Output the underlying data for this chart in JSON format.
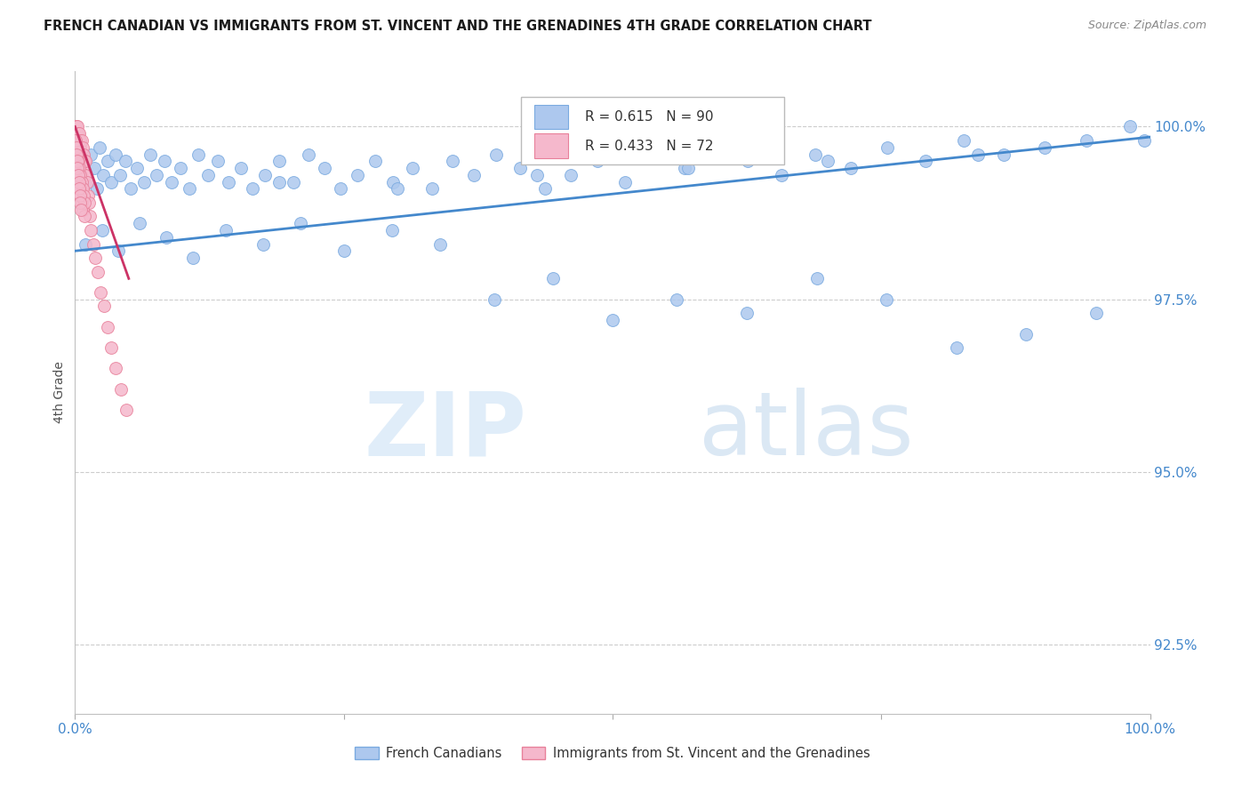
{
  "title": "FRENCH CANADIAN VS IMMIGRANTS FROM ST. VINCENT AND THE GRENADINES 4TH GRADE CORRELATION CHART",
  "source": "Source: ZipAtlas.com",
  "ylabel": "4th Grade",
  "yticks": [
    92.5,
    95.0,
    97.5,
    100.0
  ],
  "ytick_labels": [
    "92.5%",
    "95.0%",
    "97.5%",
    "100.0%"
  ],
  "xmin": 0.0,
  "xmax": 100.0,
  "ymin": 91.5,
  "ymax": 100.8,
  "blue_R": 0.615,
  "blue_N": 90,
  "pink_R": 0.433,
  "pink_N": 72,
  "blue_color": "#adc8ee",
  "blue_edge": "#7aaae0",
  "pink_color": "#f5b8cc",
  "pink_edge": "#e8809a",
  "blue_line_color": "#4488cc",
  "pink_line_color": "#cc3366",
  "legend_label_blue": "French Canadians",
  "legend_label_pink": "Immigrants from St. Vincent and the Grenadines",
  "watermark_zip": "ZIP",
  "watermark_atlas": "atlas",
  "blue_x": [
    0.5,
    0.8,
    1.2,
    1.5,
    1.8,
    2.0,
    2.3,
    2.6,
    3.0,
    3.4,
    3.8,
    4.2,
    4.7,
    5.2,
    5.8,
    6.4,
    7.0,
    7.6,
    8.3,
    9.0,
    9.8,
    10.6,
    11.5,
    12.4,
    13.3,
    14.3,
    15.4,
    16.5,
    17.7,
    19.0,
    20.3,
    21.7,
    23.2,
    24.7,
    26.3,
    27.9,
    29.6,
    31.4,
    33.2,
    35.1,
    37.1,
    39.2,
    41.4,
    43.7,
    46.1,
    48.6,
    51.2,
    53.9,
    56.7,
    59.6,
    62.6,
    65.7,
    68.9,
    72.2,
    75.6,
    79.1,
    82.7,
    86.4,
    90.2,
    94.1,
    98.1,
    1.0,
    2.5,
    4.0,
    6.0,
    8.5,
    11.0,
    14.0,
    17.5,
    21.0,
    25.0,
    29.5,
    34.0,
    39.0,
    44.5,
    50.0,
    56.0,
    62.5,
    69.0,
    75.5,
    82.0,
    88.5,
    95.0,
    19.0,
    30.0,
    43.0,
    57.0,
    70.0,
    84.0,
    99.5
  ],
  "blue_y": [
    99.3,
    99.5,
    99.2,
    99.6,
    99.4,
    99.1,
    99.7,
    99.3,
    99.5,
    99.2,
    99.6,
    99.3,
    99.5,
    99.1,
    99.4,
    99.2,
    99.6,
    99.3,
    99.5,
    99.2,
    99.4,
    99.1,
    99.6,
    99.3,
    99.5,
    99.2,
    99.4,
    99.1,
    99.3,
    99.5,
    99.2,
    99.6,
    99.4,
    99.1,
    99.3,
    99.5,
    99.2,
    99.4,
    99.1,
    99.5,
    99.3,
    99.6,
    99.4,
    99.1,
    99.3,
    99.5,
    99.2,
    99.6,
    99.4,
    99.7,
    99.5,
    99.3,
    99.6,
    99.4,
    99.7,
    99.5,
    99.8,
    99.6,
    99.7,
    99.8,
    100.0,
    98.3,
    98.5,
    98.2,
    98.6,
    98.4,
    98.1,
    98.5,
    98.3,
    98.6,
    98.2,
    98.5,
    98.3,
    97.5,
    97.8,
    97.2,
    97.5,
    97.3,
    97.8,
    97.5,
    96.8,
    97.0,
    97.3,
    99.2,
    99.1,
    99.3,
    99.4,
    99.5,
    99.6,
    99.8
  ],
  "pink_x": [
    0.05,
    0.08,
    0.1,
    0.12,
    0.15,
    0.18,
    0.2,
    0.22,
    0.25,
    0.28,
    0.3,
    0.32,
    0.35,
    0.38,
    0.4,
    0.42,
    0.45,
    0.48,
    0.5,
    0.55,
    0.6,
    0.65,
    0.7,
    0.75,
    0.8,
    0.85,
    0.9,
    0.95,
    1.0,
    1.1,
    1.2,
    1.3,
    1.4,
    1.5,
    1.7,
    1.9,
    2.1,
    2.4,
    2.7,
    3.0,
    3.4,
    3.8,
    4.3,
    4.8,
    0.1,
    0.15,
    0.2,
    0.25,
    0.3,
    0.35,
    0.4,
    0.45,
    0.5,
    0.55,
    0.6,
    0.65,
    0.7,
    0.75,
    0.8,
    0.85,
    0.9,
    0.05,
    0.1,
    0.15,
    0.2,
    0.25,
    0.3,
    0.35,
    0.4,
    0.45,
    0.5,
    0.55
  ],
  "pink_y": [
    99.9,
    100.0,
    99.8,
    99.9,
    100.0,
    99.7,
    99.9,
    99.8,
    100.0,
    99.7,
    99.9,
    99.6,
    99.8,
    99.7,
    99.9,
    99.6,
    99.8,
    99.5,
    99.7,
    99.6,
    99.8,
    99.5,
    99.7,
    99.4,
    99.6,
    99.5,
    99.3,
    99.5,
    99.3,
    99.2,
    99.0,
    98.9,
    98.7,
    98.5,
    98.3,
    98.1,
    97.9,
    97.6,
    97.4,
    97.1,
    96.8,
    96.5,
    96.2,
    95.9,
    99.5,
    99.4,
    99.6,
    99.3,
    99.5,
    99.2,
    99.4,
    99.1,
    99.3,
    99.0,
    99.2,
    98.9,
    99.1,
    98.8,
    99.0,
    98.7,
    98.9,
    99.8,
    99.7,
    99.6,
    99.5,
    99.4,
    99.3,
    99.2,
    99.1,
    99.0,
    98.9,
    98.8
  ],
  "blue_trend_x0": 0.0,
  "blue_trend_x1": 100.0,
  "blue_trend_y0": 98.2,
  "blue_trend_y1": 99.85,
  "pink_trend_x0": 0.0,
  "pink_trend_x1": 5.0,
  "pink_trend_y0": 100.0,
  "pink_trend_y1": 97.8
}
